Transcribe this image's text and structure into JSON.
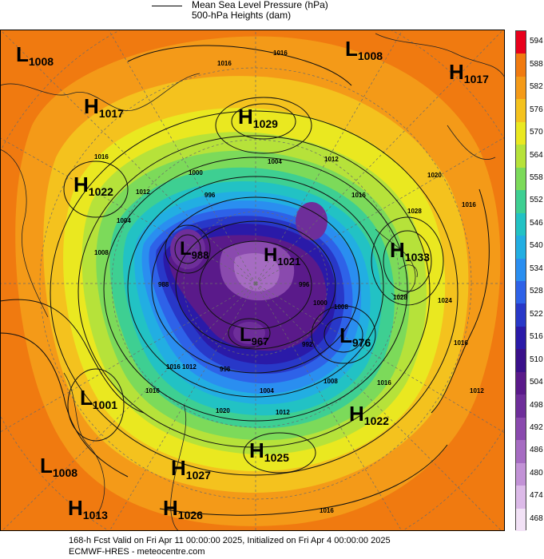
{
  "legend": {
    "line1": "Mean Sea Level Pressure (hPa)",
    "line2": "500-hPa Heights (dam)"
  },
  "colorbar": {
    "labels": [
      "594",
      "588",
      "582",
      "576",
      "570",
      "564",
      "558",
      "552",
      "546",
      "540",
      "534",
      "528",
      "522",
      "516",
      "510",
      "504",
      "498",
      "492",
      "486",
      "480",
      "474",
      "468"
    ],
    "colors": [
      "#e8001c",
      "#f07a10",
      "#f49a18",
      "#f4c21e",
      "#eae820",
      "#b6e23a",
      "#7cda5a",
      "#3ecf92",
      "#22c2c4",
      "#22aee2",
      "#2a8ef0",
      "#2e62e8",
      "#2838c8",
      "#2a1aa8",
      "#3a108a",
      "#5a1a8a",
      "#6e2e9a",
      "#8a4aae",
      "#a66cc2",
      "#c292d6",
      "#dcbae8",
      "#f2e2f6"
    ]
  },
  "centers": [
    {
      "type": "L",
      "value": "1008"
    },
    {
      "type": "H",
      "value": "1017"
    },
    {
      "type": "H",
      "value": "1029"
    },
    {
      "type": "L",
      "value": "1008"
    },
    {
      "type": "H",
      "value": "1017"
    },
    {
      "type": "H",
      "value": "1022"
    },
    {
      "type": "L",
      "value": "988"
    },
    {
      "type": "H",
      "value": "1021"
    },
    {
      "type": "H",
      "value": "1033"
    },
    {
      "type": "L",
      "value": "967"
    },
    {
      "type": "L",
      "value": "976"
    },
    {
      "type": "L",
      "value": "1001"
    },
    {
      "type": "H",
      "value": "1022"
    },
    {
      "type": "H",
      "value": "1025"
    },
    {
      "type": "L",
      "value": "1008"
    },
    {
      "type": "H",
      "value": "1027"
    },
    {
      "type": "H",
      "value": "1013"
    },
    {
      "type": "H",
      "value": "1026"
    }
  ],
  "isobar_labels": [
    "1016",
    "1016",
    "1016",
    "1028",
    "1016",
    "1000",
    "1004",
    "1012",
    "1016",
    "1020",
    "1012",
    "996",
    "1004",
    "1008",
    "1008",
    "1028",
    "1024",
    "1016",
    "1012",
    "988",
    "996",
    "1000",
    "992",
    "1008",
    "1012",
    "1016",
    "1004",
    "1012",
    "996",
    "1020",
    "1016",
    "1016",
    "1016"
  ],
  "footer": {
    "line1": "168-h Fcst Valid on Fri Apr 11 00:00:00 2025, Initialized on Fri Apr  4 00:00:00 2025",
    "line2": "ECMWF-HRES  - meteocentre.com"
  }
}
